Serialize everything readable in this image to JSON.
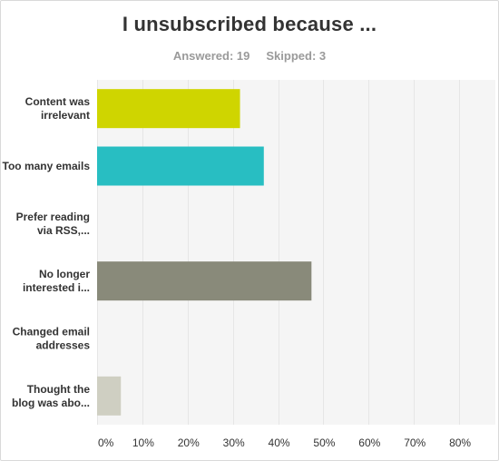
{
  "stats": {
    "answered": "Answered: 19",
    "skipped": "Skipped: 3"
  },
  "chart_data": {
    "type": "bar",
    "orientation": "horizontal",
    "title": "I unsubscribed because ...",
    "categories": [
      [
        "Content was",
        "irrelevant"
      ],
      [
        "Too many emails"
      ],
      [
        "Prefer reading",
        "via RSS,..."
      ],
      [
        "No longer",
        "interested i..."
      ],
      [
        "Changed email",
        "addresses"
      ],
      [
        "Thought the",
        "blog was abo..."
      ]
    ],
    "values": [
      31.58,
      36.84,
      0,
      47.37,
      0,
      5.26
    ],
    "colors": [
      "#cfd500",
      "#28bec2",
      "#00a3c4",
      "#898a7a",
      "#6f7bc0",
      "#cfcfc2"
    ],
    "xlim": [
      0,
      88
    ],
    "xticks": [
      0,
      10,
      20,
      30,
      40,
      50,
      60,
      70,
      80
    ],
    "tick_suffix": "%",
    "grid": true,
    "gridColor": "#e6e6e6",
    "plotBg": "#f5f5f5"
  }
}
